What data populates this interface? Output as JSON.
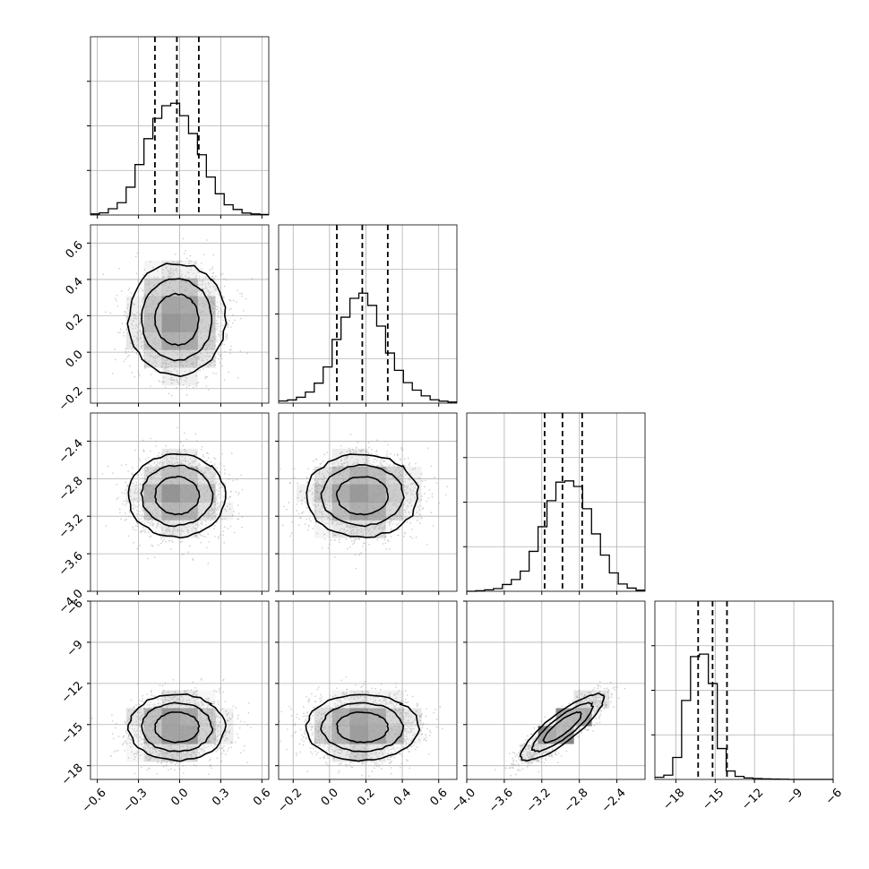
{
  "chart_data": {
    "type": "corner",
    "grid": true,
    "variables": [
      {
        "xlim": [
          -0.65,
          0.65
        ],
        "x_ticks": [
          -0.6,
          -0.3,
          0.0,
          0.3,
          0.6
        ],
        "x_tick_labels": [
          "−0.6",
          "−0.3",
          "0.0",
          "0.3",
          "0.6"
        ],
        "quantiles": [
          -0.18,
          -0.02,
          0.14
        ],
        "histogram": [
          0.006,
          0.012,
          0.035,
          0.069,
          0.156,
          0.283,
          0.428,
          0.542,
          0.613,
          0.627,
          0.557,
          0.457,
          0.338,
          0.213,
          0.119,
          0.057,
          0.031,
          0.011,
          0.006,
          0.003
        ]
      },
      {
        "xlim": [
          -0.28,
          0.7
        ],
        "x_ticks": [
          -0.2,
          0.0,
          0.2,
          0.4,
          0.6
        ],
        "x_tick_labels": [
          "−0.2",
          "0.0",
          "0.2",
          "0.4",
          "0.6"
        ],
        "ylim": [
          -0.28,
          0.7
        ],
        "y_ticks": [
          -0.2,
          0.0,
          0.2,
          0.4,
          0.6
        ],
        "y_tick_labels": [
          "−0.2",
          "0.0",
          "0.2",
          "0.4",
          "0.6"
        ],
        "quantiles": [
          0.04,
          0.18,
          0.32
        ],
        "histogram": [
          0.012,
          0.018,
          0.033,
          0.062,
          0.112,
          0.203,
          0.357,
          0.482,
          0.588,
          0.617,
          0.548,
          0.432,
          0.281,
          0.184,
          0.115,
          0.073,
          0.041,
          0.019,
          0.011,
          0.006
        ]
      },
      {
        "xlim": [
          -4.0,
          -2.1
        ],
        "x_ticks": [
          -4.0,
          -3.6,
          -3.2,
          -2.8,
          -2.4
        ],
        "x_tick_labels": [
          "−4.0",
          "−3.6",
          "−3.2",
          "−2.8",
          "−2.4"
        ],
        "ylim": [
          -4.0,
          -2.1
        ],
        "y_ticks": [
          -4.0,
          -3.6,
          -3.2,
          -2.8,
          -2.4
        ],
        "y_tick_labels": [
          "−4.0",
          "−3.6",
          "−3.2",
          "−2.8",
          "−2.4"
        ],
        "quantiles": [
          -3.17,
          -2.98,
          -2.77
        ],
        "histogram": [
          0.0,
          0.003,
          0.008,
          0.015,
          0.038,
          0.066,
          0.113,
          0.224,
          0.362,
          0.508,
          0.612,
          0.619,
          0.588,
          0.463,
          0.322,
          0.203,
          0.103,
          0.041,
          0.018,
          0.006
        ]
      },
      {
        "xlim": [
          -19.6,
          -6.0
        ],
        "x_ticks": [
          -18,
          -15,
          -12,
          -9,
          -6
        ],
        "x_tick_labels": [
          "−18",
          "−15",
          "−12",
          "−9",
          "−6"
        ],
        "ylim": [
          -19.0,
          -6.0
        ],
        "y_ticks": [
          -18,
          -15,
          -12,
          -9,
          -6
        ],
        "y_tick_labels": [
          "−18",
          "−15",
          "−12",
          "−9",
          "−6"
        ],
        "quantiles": [
          -16.3,
          -15.2,
          -14.1
        ],
        "histogram": [
          0.012,
          0.024,
          0.123,
          0.443,
          0.689,
          0.703,
          0.538,
          0.173,
          0.047,
          0.017,
          0.008,
          0.005,
          0.003,
          0.002,
          0.001,
          0.0,
          0.0,
          0.0,
          0.0,
          0.0
        ]
      }
    ],
    "pairs": [
      {
        "row": 1,
        "col": 0,
        "mean": [
          -0.02,
          0.18
        ],
        "sd": [
          0.16,
          0.14
        ],
        "corr": 0.0
      },
      {
        "row": 2,
        "col": 0,
        "mean": [
          -0.02,
          -2.98
        ],
        "sd": [
          0.16,
          0.2
        ],
        "corr": 0.0
      },
      {
        "row": 2,
        "col": 1,
        "mean": [
          0.18,
          -2.98
        ],
        "sd": [
          0.14,
          0.2
        ],
        "corr": 0.0
      },
      {
        "row": 3,
        "col": 0,
        "mean": [
          -0.02,
          -15.2
        ],
        "sd": [
          0.16,
          1.1
        ],
        "corr": 0.0
      },
      {
        "row": 3,
        "col": 1,
        "mean": [
          0.18,
          -15.2
        ],
        "sd": [
          0.14,
          1.1
        ],
        "corr": 0.0
      },
      {
        "row": 3,
        "col": 2,
        "mean": [
          -2.98,
          -15.2
        ],
        "sd": [
          0.2,
          1.1
        ],
        "corr": 0.85
      }
    ],
    "contour_levels_sigma": [
      1.0,
      1.6,
      2.2
    ],
    "colors": {
      "line": "#000000",
      "points": "#9a9a9a",
      "density": "#000000",
      "grid": "#b0b0b0"
    }
  }
}
